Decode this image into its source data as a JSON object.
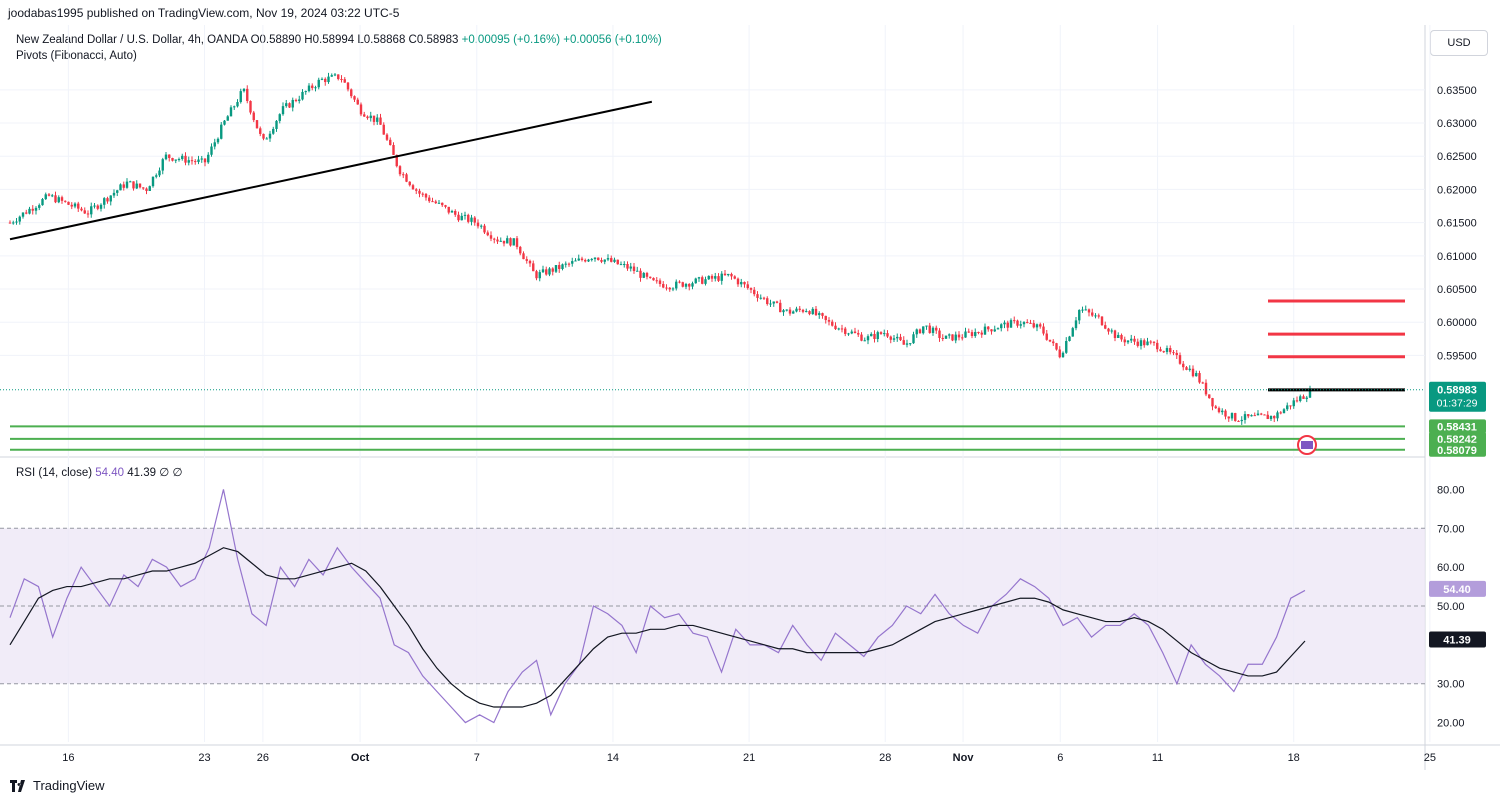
{
  "header": {
    "published": "joodabas1995 published on TradingView.com, Nov 19, 2024 03:22 UTC-5"
  },
  "symbol": {
    "name": "New Zealand Dollar / U.S. Dollar, 4h, OANDA",
    "open": "O0.58890",
    "high": "H0.58994",
    "low": "L0.58868",
    "close": "C0.58983",
    "change": "+0.00095 (+0.16%)",
    "change2": "+0.00056 (+0.10%)",
    "indicator": "Pivots (Fibonacci, Auto)"
  },
  "currency_label": "USD",
  "rsi_legend": {
    "label": "RSI (14, close)",
    "rsi": "54.40",
    "ma": "41.39",
    "extra1": "∅",
    "extra2": "∅"
  },
  "price_badges": {
    "last": "0.58983",
    "countdown": "01:37:29",
    "s1": "0.58431",
    "s2": "0.58242",
    "s3": "0.58079",
    "rsi_value": "54.40",
    "rsi_ma": "41.39"
  },
  "footer": {
    "brand": "TradingView"
  },
  "colors": {
    "up": "#089981",
    "down": "#f23645",
    "rsi": "#7e57c2",
    "rsi_band": "#ede7f6",
    "support": "#4caf50",
    "resistance": "#f23645"
  },
  "chart_data": [
    {
      "type": "candlestick",
      "title": "New Zealand Dollar / U.S. Dollar, 4h, OANDA",
      "ylim": [
        0.58,
        0.641
      ],
      "y_ticks": [
        "0.63500",
        "0.63000",
        "0.62500",
        "0.62000",
        "0.61500",
        "0.61000",
        "0.60500",
        "0.60000",
        "0.59500"
      ],
      "x_ticks": [
        "16",
        "23",
        "26",
        "Oct",
        "7",
        "14",
        "21",
        "28",
        "Nov",
        "6",
        "11",
        "18",
        "25"
      ],
      "close_path": [
        {
          "x": "Sep 13",
          "y": 0.615
        },
        {
          "x": "Sep 15",
          "y": 0.619
        },
        {
          "x": "Sep 17",
          "y": 0.6165
        },
        {
          "x": "Sep 19",
          "y": 0.621
        },
        {
          "x": "Sep 20",
          "y": 0.62
        },
        {
          "x": "Sep 21",
          "y": 0.625
        },
        {
          "x": "Sep 23",
          "y": 0.624
        },
        {
          "x": "Sep 24",
          "y": 0.63
        },
        {
          "x": "Sep 25",
          "y": 0.635
        },
        {
          "x": "Sep 26",
          "y": 0.627
        },
        {
          "x": "Sep 27",
          "y": 0.632
        },
        {
          "x": "Sep 29",
          "y": 0.6365
        },
        {
          "x": "Sep 30",
          "y": 0.637
        },
        {
          "x": "Oct 1",
          "y": 0.632
        },
        {
          "x": "Oct 2",
          "y": 0.63
        },
        {
          "x": "Oct 3",
          "y": 0.623
        },
        {
          "x": "Oct 4",
          "y": 0.6195
        },
        {
          "x": "Oct 6",
          "y": 0.616
        },
        {
          "x": "Oct 7",
          "y": 0.615
        },
        {
          "x": "Oct 8",
          "y": 0.6125
        },
        {
          "x": "Oct 9",
          "y": 0.612
        },
        {
          "x": "Oct 10",
          "y": 0.607
        },
        {
          "x": "Oct 11",
          "y": 0.608
        },
        {
          "x": "Oct 13",
          "y": 0.61
        },
        {
          "x": "Oct 14",
          "y": 0.609
        },
        {
          "x": "Oct 15",
          "y": 0.608
        },
        {
          "x": "Oct 16",
          "y": 0.606
        },
        {
          "x": "Oct 17",
          "y": 0.6055
        },
        {
          "x": "Oct 18",
          "y": 0.606
        },
        {
          "x": "Oct 20",
          "y": 0.607
        },
        {
          "x": "Oct 21",
          "y": 0.605
        },
        {
          "x": "Oct 22",
          "y": 0.603
        },
        {
          "x": "Oct 23",
          "y": 0.6015
        },
        {
          "x": "Oct 24",
          "y": 0.602
        },
        {
          "x": "Oct 25",
          "y": 0.6
        },
        {
          "x": "Oct 27",
          "y": 0.5975
        },
        {
          "x": "Oct 28",
          "y": 0.5985
        },
        {
          "x": "Oct 29",
          "y": 0.5965
        },
        {
          "x": "Oct 30",
          "y": 0.5995
        },
        {
          "x": "Oct 31",
          "y": 0.5975
        },
        {
          "x": "Nov 1",
          "y": 0.598
        },
        {
          "x": "Nov 3",
          "y": 0.5995
        },
        {
          "x": "Nov 4",
          "y": 0.6
        },
        {
          "x": "Nov 5",
          "y": 0.599
        },
        {
          "x": "Nov 6",
          "y": 0.595
        },
        {
          "x": "Nov 7",
          "y": 0.602
        },
        {
          "x": "Nov 8",
          "y": 0.6005
        },
        {
          "x": "Nov 9",
          "y": 0.5975
        },
        {
          "x": "Nov 11",
          "y": 0.5965
        },
        {
          "x": "Nov 12",
          "y": 0.5945
        },
        {
          "x": "Nov 13",
          "y": 0.592
        },
        {
          "x": "Nov 14",
          "y": 0.587
        },
        {
          "x": "Nov 15",
          "y": 0.5855
        },
        {
          "x": "Nov 17",
          "y": 0.5858
        },
        {
          "x": "Nov 18",
          "y": 0.588
        },
        {
          "x": "Nov 19",
          "y": 0.5898
        }
      ],
      "trendline": {
        "from": {
          "x": "Sep 13",
          "y": 0.6125
        },
        "to": {
          "x": "Oct 16",
          "y": 0.6332
        }
      },
      "pivots": {
        "resistance": [
          0.6032,
          0.5982,
          0.5948
        ],
        "pivot": 0.5898,
        "support": [
          0.58431,
          0.58242,
          0.58079
        ]
      },
      "last_price": 0.58983
    },
    {
      "type": "line",
      "title": "RSI (14, close)",
      "ylim": [
        15,
        85
      ],
      "y_ticks": [
        "80.00",
        "70.00",
        "60.00",
        "50.00",
        "30.00",
        "20.00"
      ],
      "bands": [
        30,
        50,
        70
      ],
      "series": [
        {
          "name": "RSI",
          "values": [
            47,
            57,
            55,
            42,
            52,
            60,
            55,
            50,
            58,
            55,
            62,
            60,
            55,
            57,
            65,
            80,
            62,
            48,
            45,
            60,
            55,
            62,
            58,
            65,
            60,
            56,
            52,
            40,
            38,
            32,
            28,
            24,
            20,
            22,
            20,
            28,
            33,
            36,
            22,
            30,
            35,
            50,
            48,
            45,
            38,
            50,
            47,
            48,
            43,
            42,
            33,
            44,
            40,
            40,
            38,
            45,
            40,
            36,
            43,
            40,
            37,
            42,
            45,
            50,
            48,
            53,
            48,
            45,
            43,
            50,
            53,
            57,
            55,
            52,
            45,
            47,
            42,
            45,
            45,
            48,
            45,
            38,
            30,
            40,
            35,
            32,
            28,
            35,
            35,
            42,
            52,
            54
          ]
        },
        {
          "name": "RSI MA",
          "values": [
            40,
            46,
            52,
            54,
            55,
            55,
            56,
            57,
            57,
            58,
            59,
            59,
            60,
            61,
            63,
            65,
            64,
            61,
            58,
            57,
            57,
            58,
            59,
            60,
            61,
            59,
            55,
            50,
            45,
            39,
            34,
            30,
            27,
            25,
            24,
            24,
            24,
            25,
            27,
            31,
            35,
            39,
            42,
            43,
            43,
            44,
            44,
            45,
            45,
            44,
            43,
            42,
            41,
            40,
            39,
            39,
            38,
            38,
            38,
            38,
            38,
            39,
            40,
            42,
            44,
            46,
            47,
            48,
            49,
            50,
            51,
            52,
            52,
            51,
            49,
            48,
            47,
            46,
            46,
            47,
            46,
            44,
            41,
            38,
            36,
            34,
            33,
            32,
            32,
            33,
            37,
            41
          ]
        }
      ]
    }
  ]
}
